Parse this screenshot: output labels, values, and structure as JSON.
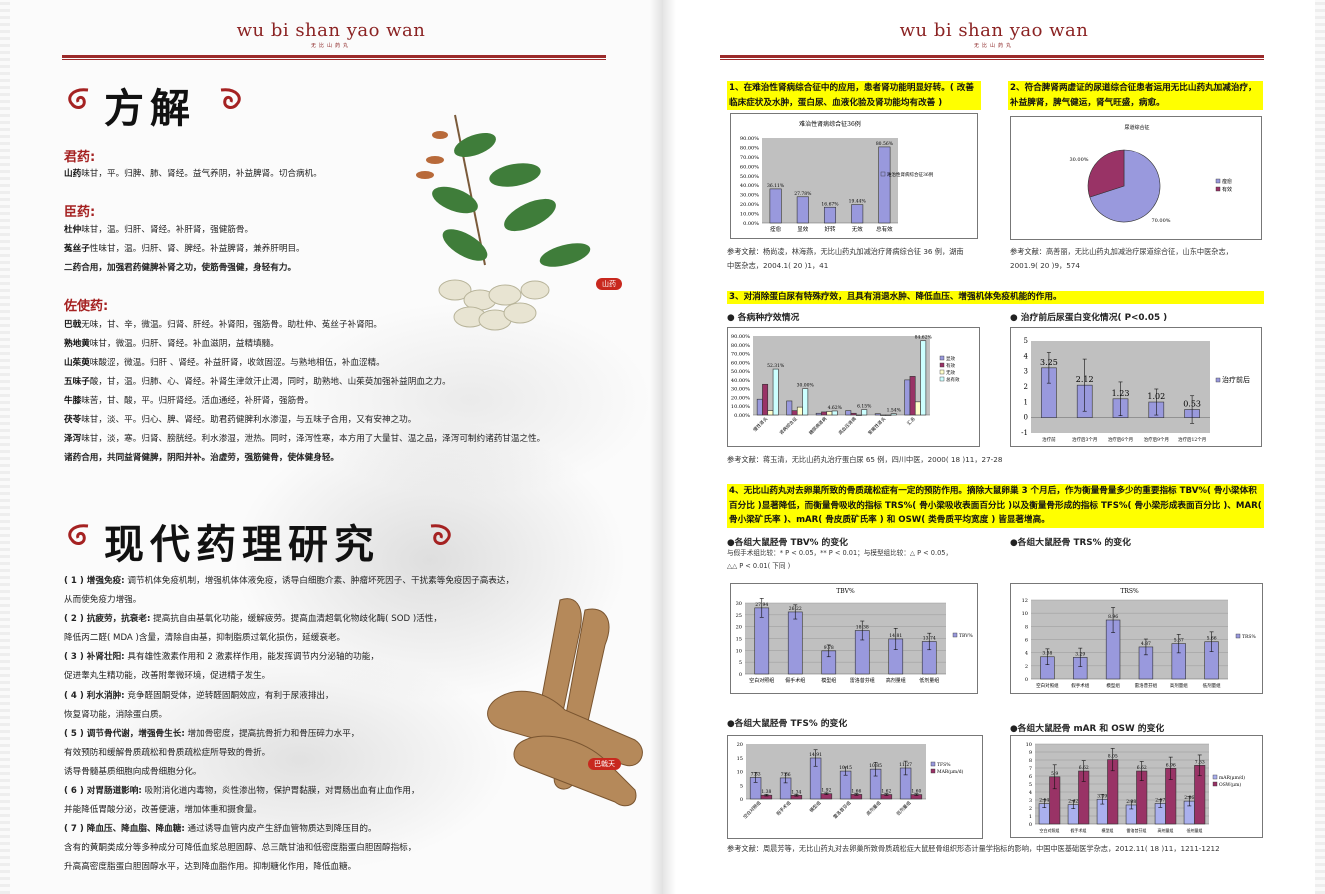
{
  "left": {
    "brand": "wu bi shan yao wan",
    "brand_sub": "无比山药丸",
    "title1": "方解",
    "jun": {
      "heading": "君药:",
      "lines": [
        {
          "name": "山药",
          "text": "味甘，平。归脾、肺、肾经。益气养阴，补益脾肾。切合病机。"
        }
      ]
    },
    "chen": {
      "heading": "臣药:",
      "lines": [
        {
          "name": "杜仲",
          "text": "味甘，温。归肝、肾经。补肝肾，强健筋骨。"
        },
        {
          "name": "菟丝子",
          "text": "性味甘，温。归肝、肾、脾经。补益脾肾，兼养肝明目。"
        }
      ],
      "summary": "二药合用，加强君药健脾补肾之功，使筋骨强健，身轻有力。"
    },
    "zuoshi": {
      "heading": "佐使药:",
      "lines": [
        {
          "name": "巴戟",
          "text": "无味，甘、辛，微温。归肾、肝经。补肾阳，强筋骨。助杜仲、菟丝子补肾阳。"
        },
        {
          "name": "熟地黄",
          "text": "味甘，微温。归肝、肾经。补血滋阴，益精填髓。"
        },
        {
          "name": "山茱萸",
          "text": "味酸涩，微温。归肝 、肾经。补益肝肾，收敛固涩。与熟地相伍，补血涩精。"
        },
        {
          "name": "五味子",
          "text": "酸，甘，温。归肺、心、肾经。补肾生津敛汗止渴，同时，助熟地、山茱萸加强补益阴血之力。"
        },
        {
          "name": "牛膝",
          "text": "味苦，甘、酸，平。归肝肾经。活血通经，补肝肾，强筋骨。"
        },
        {
          "name": "茯苓",
          "text": "味甘，淡、平。归心、脾、肾经。助君药健脾利水渗湿，与五味子合用，又有安神之功。"
        },
        {
          "name": "泽泻",
          "text": "味甘，淡，寒。归肾、膀胱经。利水渗湿，泄热。同时，泽泻性寒，本方用了大量甘、温之品，泽泻可制约诸药甘温之性。"
        }
      ],
      "summary": "诸药合用，共同益肾健脾，阴阳并补。治虚劳，强筋健骨，使体健身轻。"
    },
    "plant_tag": "山药",
    "title2": "现代药理研究",
    "pharma": [
      {
        "label": "( 1 ) 增强免疫:",
        "lines": [
          "调节机体免疫机制，增强机体体液免疫，诱导白细胞介素、肿瘤坏死因子、干扰素等免疫因子高表达，",
          "从而使免疫力增强。"
        ]
      },
      {
        "label": "( 2 ) 抗疲劳，抗衰老:",
        "lines": [
          "提高抗自由基氧化功能，缓解疲劳。提高血清超氧化物歧化酶( SOD )活性，",
          "降低丙二醛( MDA )含量，清除自由基，抑制脂质过氧化损伤，延缓衰老。"
        ]
      },
      {
        "label": "( 3 ) 补肾壮阳:",
        "lines": [
          "具有雄性激素作用和 2 激素样作用，能发挥调节内分泌轴的功能，",
          "促进睾丸生精功能，改善附睾微环境，促进精子发生。"
        ]
      },
      {
        "label": "( 4 ) 利水消肿:",
        "lines": [
          "竞争醛固酮受体，逆转醛固酮效应，有利于尿液排出，",
          "恢复肾功能，消除蛋白质。"
        ]
      },
      {
        "label": "( 5 ) 调节骨代谢，增强骨生长:",
        "lines": [
          "增加骨密度，提高抗骨折力和骨压碎力水平，",
          "有效预防和缓解骨质疏松和骨质疏松症所导致的骨折。",
          "诱导骨髓基质细胞向成骨细胞分化。"
        ]
      },
      {
        "label": "( 6 ) 对胃肠道影响:",
        "lines": [
          "吸附消化道内毒物，炎性渗出物，保护胃黏膜，对胃肠出血有止血作用，",
          "并能降低胃酸分泌，改善便溏，增加体重和摄食量。"
        ]
      },
      {
        "label": "( 7 ) 降血压、降血脂、降血糖:",
        "lines": [
          "通过诱导血管内皮产生舒血管物质达到降压目的。",
          "含有的黄酮类成分等多种成分可降低血浆总胆固醇、总三酰甘油和低密度脂蛋白胆固醇指标，",
          "升高高密度脂蛋白胆固醇水平，达到降血脂作用。抑制糖化作用，降低血糖。"
        ]
      }
    ],
    "root_tag": "巴戟天"
  },
  "right": {
    "brand": "wu bi shan yao wan",
    "brand_sub": "无比山药丸",
    "s1": "1、在难治性肾病综合征中的应用，患者肾功能明显好转。( 改善临床症状及水肿，蛋白尿、血液化验及肾功能均有改善 )",
    "s2": "2、符合脾肾两虚证的尿道综合征患者运用无比山药丸加减治疗，补益脾肾，脾气健运，肾气旺盛，病愈。",
    "ref1": [
      "参考文献：杨尚凌，林海燕，无比山药丸加减治疗肾病综合征 36 例，湖南",
      "中医杂志，2004.1( 20 )1，41"
    ],
    "ref2": [
      "参考文献：高善丽，无比山药丸加减治疗尿道综合征，山东中医杂志，",
      "2001.9( 20 )9，574"
    ],
    "s3": "3、对消除蛋白尿有特殊疗效，且具有消退水肿、降低血压、增强机体免疫机能的作用。",
    "b3a": "● 各病种疗效情况",
    "b3b": "●  治疗前后尿蛋白变化情况( P<0.05 )",
    "ref3": "参考文献：蒋玉清，无比山药丸治疗蛋白尿 65 例，四川中医，2000( 18 )11，27-28",
    "s4": "4、无比山药丸对去卵巢所致的骨质疏松症有一定的预防作用。摘除大鼠卵巢 3 个月后，作为衡量骨量多少的重要指标 TBV%( 骨小梁体积百分比 )显著降低，而衡量骨吸收的指标 TRS%( 骨小梁吸收表面百分比 )以及衡量骨形成的指标 TFS%( 骨小梁形成表面百分比 )、MAR( 骨小梁矿氏率 )、mAR( 骨皮质矿氏率 ) 和 OSW( 类骨质平均宽度 ) 皆显著增高。",
    "b4a": "●各组大鼠胫骨 TBV% 的变化",
    "b4b": "●各组大鼠胫骨 TRS% 的变化",
    "note": [
      "与假手术组比较：* P < 0.05，** P < 0.01；与模型组比较：△ P < 0.05，",
      "△△ P < 0.01( 下同 )"
    ],
    "b4c": "●各组大鼠胫骨 TFS% 的变化",
    "b4d": "●各组大鼠胫骨 mAR 和 OSW 的变化",
    "ref4": "参考文献：周晨芳等，无比山药丸对去卵巢所致骨质疏松症大鼠胫骨组织形态计量学指标的影响，中国中医基础医学杂志，2012.11( 18 )11，1211-1212"
  },
  "colors": {
    "brand": "#8b2323",
    "highlight": "#ffff00",
    "heading": "#a52222",
    "bar_blue": "#9999dd",
    "bar_maroon": "#993366",
    "plot_bg": "#c0c0c0"
  },
  "chart_data": [
    {
      "type": "bar",
      "title": "难治性肾病综合征36例",
      "categories": [
        "痊愈",
        "显效",
        "好转",
        "无效",
        "总有效"
      ],
      "series": [
        {
          "name": "难治性肾病综合征36例",
          "values": [
            36.11,
            27.78,
            16.67,
            19.44,
            80.56
          ],
          "color": "#9999dd",
          "data_labels": [
            "36.11%",
            "27.78%",
            "16.67%",
            "19.44%",
            "80.56%"
          ]
        }
      ],
      "ylim": [
        0,
        90
      ],
      "yticks": [
        0,
        10,
        20,
        30,
        40,
        50,
        60,
        70,
        80,
        90
      ],
      "ytick_labels": [
        "0.00%",
        "10.00%",
        "20.00%",
        "30.00%",
        "40.00%",
        "50.00%",
        "60.00%",
        "70.00%",
        "80.00%",
        "90.00%"
      ],
      "legend": "right",
      "grid": false
    },
    {
      "type": "pie",
      "title": "尿道综合征",
      "slices": [
        {
          "label": "痊愈",
          "value": 70,
          "color": "#9999dd",
          "data_label": "70.00%"
        },
        {
          "label": "有效",
          "value": 30,
          "color": "#993366",
          "data_label": "30.00%"
        }
      ],
      "legend": "right"
    },
    {
      "type": "bar",
      "title": "",
      "categories": [
        "慢性肾炎",
        "肾病综合征",
        "糖尿病肾病",
        "高血压肾病",
        "紫癜性肾炎",
        "汇总"
      ],
      "series": [
        {
          "name": "显效",
          "values": [
            18,
            16,
            2,
            5,
            1.5,
            40
          ],
          "color": "#9999dd"
        },
        {
          "name": "有效",
          "values": [
            35,
            5,
            3.5,
            2,
            0,
            44
          ],
          "color": "#993366"
        },
        {
          "name": "无效",
          "values": [
            5,
            9,
            4,
            0,
            0,
            15
          ],
          "color": "#ffffcc"
        },
        {
          "name": "总有效",
          "values": [
            52.31,
            30.0,
            4.62,
            6.15,
            1.54,
            84.62
          ],
          "color": "#ccffff",
          "data_labels": [
            "52.31%",
            "30.00%",
            "4.62%",
            "6.15%",
            "1.54%",
            "84.62%"
          ]
        }
      ],
      "ylim": [
        0,
        90
      ],
      "yticks": [
        0,
        10,
        20,
        30,
        40,
        50,
        60,
        70,
        80,
        90
      ],
      "ytick_labels": [
        "0.00%",
        "10.00%",
        "20.00%",
        "30.00%",
        "40.00%",
        "50.00%",
        "60.00%",
        "70.00%",
        "80.00%",
        "90.00%"
      ],
      "legend": "right",
      "grid": false
    },
    {
      "type": "bar",
      "title": "",
      "categories": [
        "治疗前",
        "治疗后3个月",
        "治疗后6个月",
        "治疗后9个月",
        "治疗后12个月"
      ],
      "series": [
        {
          "name": "治疗前后",
          "values": [
            3.25,
            2.12,
            1.23,
            1.02,
            0.53
          ],
          "errors": [
            1.0,
            1.7,
            1.1,
            0.85,
            0.9
          ],
          "color": "#9999dd",
          "data_labels": [
            "3.25",
            "2.12",
            "1.23",
            "1.02",
            "0.53"
          ]
        }
      ],
      "ylim": [
        -1,
        5
      ],
      "yticks": [
        -1,
        0,
        1,
        2,
        3,
        4,
        5
      ],
      "ytick_labels": [
        "-1",
        "0",
        "1",
        "2",
        "3",
        "4",
        "5"
      ],
      "legend": "right",
      "grid": false
    },
    {
      "type": "bar",
      "title": "TBV%",
      "categories": [
        "空白对照组",
        "假手术组",
        "模型组",
        "雷洛昔芬组",
        "高剂量组",
        "低剂量组"
      ],
      "series": [
        {
          "name": "TBV%",
          "values": [
            27.94,
            26.22,
            9.78,
            18.38,
            14.81,
            13.74
          ],
          "errors": [
            4,
            3,
            2.5,
            4,
            4.5,
            3.5
          ],
          "color": "#9999dd",
          "data_labels": [
            "27.94",
            "26.22",
            "9.78",
            "18.38",
            "14.81",
            "13.74"
          ]
        }
      ],
      "ylim": [
        0,
        30
      ],
      "yticks": [
        0,
        5,
        10,
        15,
        20,
        25,
        30
      ],
      "ytick_labels": [
        "0",
        "5",
        "10",
        "15",
        "20",
        "25",
        "30"
      ],
      "legend": "right",
      "grid": true
    },
    {
      "type": "bar",
      "title": "TRS%",
      "categories": [
        "空白对照组",
        "假手术组",
        "模型组",
        "雷洛昔芬组",
        "高剂量组",
        "低剂量组"
      ],
      "series": [
        {
          "name": "TRS%",
          "values": [
            3.38,
            3.29,
            8.96,
            4.87,
            5.37,
            5.66
          ],
          "errors": [
            1.2,
            1.4,
            1.9,
            1.2,
            1.4,
            1.5
          ],
          "color": "#9999dd",
          "data_labels": [
            "3.38",
            "3.29",
            "8.96",
            "4.87",
            "5.37",
            "5.66"
          ]
        }
      ],
      "ylim": [
        0,
        12
      ],
      "yticks": [
        0,
        2,
        4,
        6,
        8,
        10,
        12
      ],
      "ytick_labels": [
        "0",
        "2",
        "4",
        "6",
        "8",
        "10",
        "12"
      ],
      "legend": "right",
      "grid": true
    },
    {
      "type": "bar",
      "title": "",
      "categories": [
        "空白对照组",
        "假手术组",
        "模型组",
        "雷洛昔芬组",
        "高剂量组",
        "低剂量组"
      ],
      "series": [
        {
          "name": "TFS%",
          "values": [
            7.83,
            7.66,
            14.91,
            10.15,
            10.85,
            11.27
          ],
          "errors": [
            1.8,
            1.8,
            3,
            1.5,
            2.5,
            2.5
          ],
          "color": "#9999dd",
          "data_labels": [
            "7.83",
            "7.66",
            "14.91",
            "10.15",
            "10.85",
            "11.27"
          ]
        },
        {
          "name": "MAR(μm/d)",
          "values": [
            1.38,
            1.34,
            1.92,
            1.66,
            1.62,
            1.6
          ],
          "errors": [
            0.3,
            0.3,
            0.3,
            0.3,
            0.3,
            0.3
          ],
          "color": "#993366",
          "data_labels": [
            "1.38",
            "1.34",
            "1.92",
            "1.66",
            "1.62",
            "1.60"
          ]
        }
      ],
      "ylim": [
        0,
        20
      ],
      "yticks": [
        0,
        5,
        10,
        15,
        20
      ],
      "ytick_labels": [
        "0",
        "5",
        "10",
        "15",
        "20"
      ],
      "legend": "right",
      "grid": false
    },
    {
      "type": "bar",
      "title": "",
      "categories": [
        "空白对照组",
        "假手术组",
        "模型组",
        "雷洛昔芬组",
        "高剂量组",
        "低剂量组"
      ],
      "series": [
        {
          "name": "mAR(μm/d)",
          "values": [
            2.54,
            2.42,
            3.09,
            2.38,
            2.57,
            2.86
          ],
          "errors": [
            0.5,
            0.5,
            0.6,
            0.5,
            0.5,
            0.6
          ],
          "color": "#aab0ee",
          "data_labels": [
            "2.54",
            "2.42",
            "3.09",
            "2.38",
            "2.57",
            "2.86"
          ]
        },
        {
          "name": "OSW(μm)",
          "values": [
            5.9,
            6.62,
            8.05,
            6.62,
            6.96,
            7.33
          ],
          "errors": [
            1.5,
            1.3,
            1.4,
            1.2,
            1.4,
            1.3
          ],
          "color": "#993366",
          "data_labels": [
            "5.9",
            "6.62",
            "8.05",
            "6.62",
            "6.96",
            "7.33"
          ]
        }
      ],
      "ylim": [
        0,
        10
      ],
      "yticks": [
        0,
        1,
        2,
        3,
        4,
        5,
        6,
        7,
        8,
        9,
        10
      ],
      "ytick_labels": [
        "0",
        "1",
        "2",
        "3",
        "4",
        "5",
        "6",
        "7",
        "8",
        "9",
        "10"
      ],
      "legend": "right",
      "grid": true
    }
  ]
}
